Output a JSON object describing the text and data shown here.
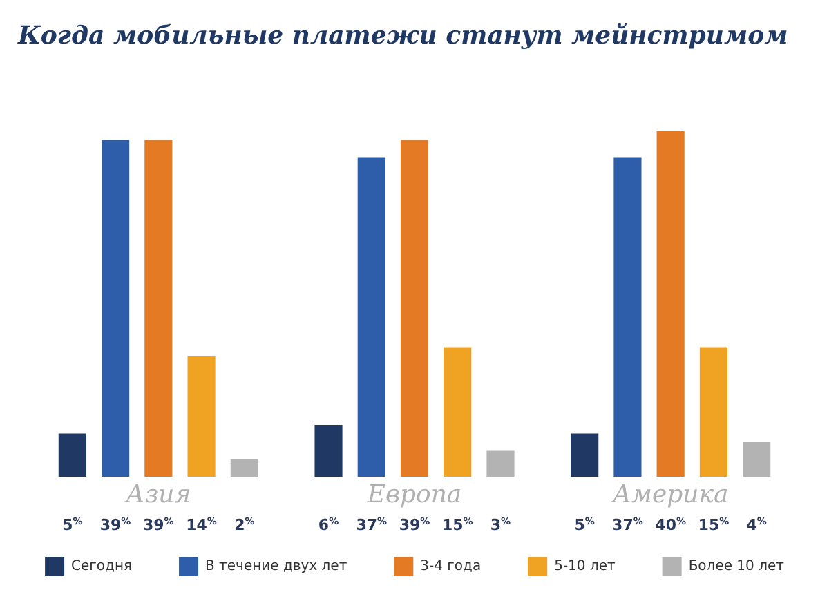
{
  "chart_data": {
    "type": "bar",
    "title": "Когда мобильные платежи станут мейнстримом",
    "categories": [
      "Азия",
      "Европа",
      "Америка"
    ],
    "series": [
      {
        "name": "Сегодня",
        "color": "#1f3864",
        "values": [
          5,
          6,
          5
        ],
        "value_labels": [
          "5%",
          "6%",
          "5%"
        ]
      },
      {
        "name": "В течение двух лет",
        "color": "#2e5eaa",
        "values": [
          39,
          37,
          37
        ],
        "value_labels": [
          "39%",
          "37%",
          "37%"
        ]
      },
      {
        "name": "3-4 года",
        "color": "#e57a25",
        "values": [
          39,
          39,
          40
        ],
        "value_labels": [
          "39%",
          "39%",
          "40%"
        ]
      },
      {
        "name": "5-10 лет",
        "color": "#f0a323",
        "values": [
          14,
          15,
          15
        ],
        "value_labels": [
          "14%",
          "15%",
          "15%"
        ]
      },
      {
        "name": "Более 10 лет",
        "color": "#b3b3b3",
        "values": [
          2,
          3,
          4
        ],
        "value_labels": [
          "2%",
          "3%",
          "4%"
        ]
      }
    ],
    "legend": "bottom"
  }
}
